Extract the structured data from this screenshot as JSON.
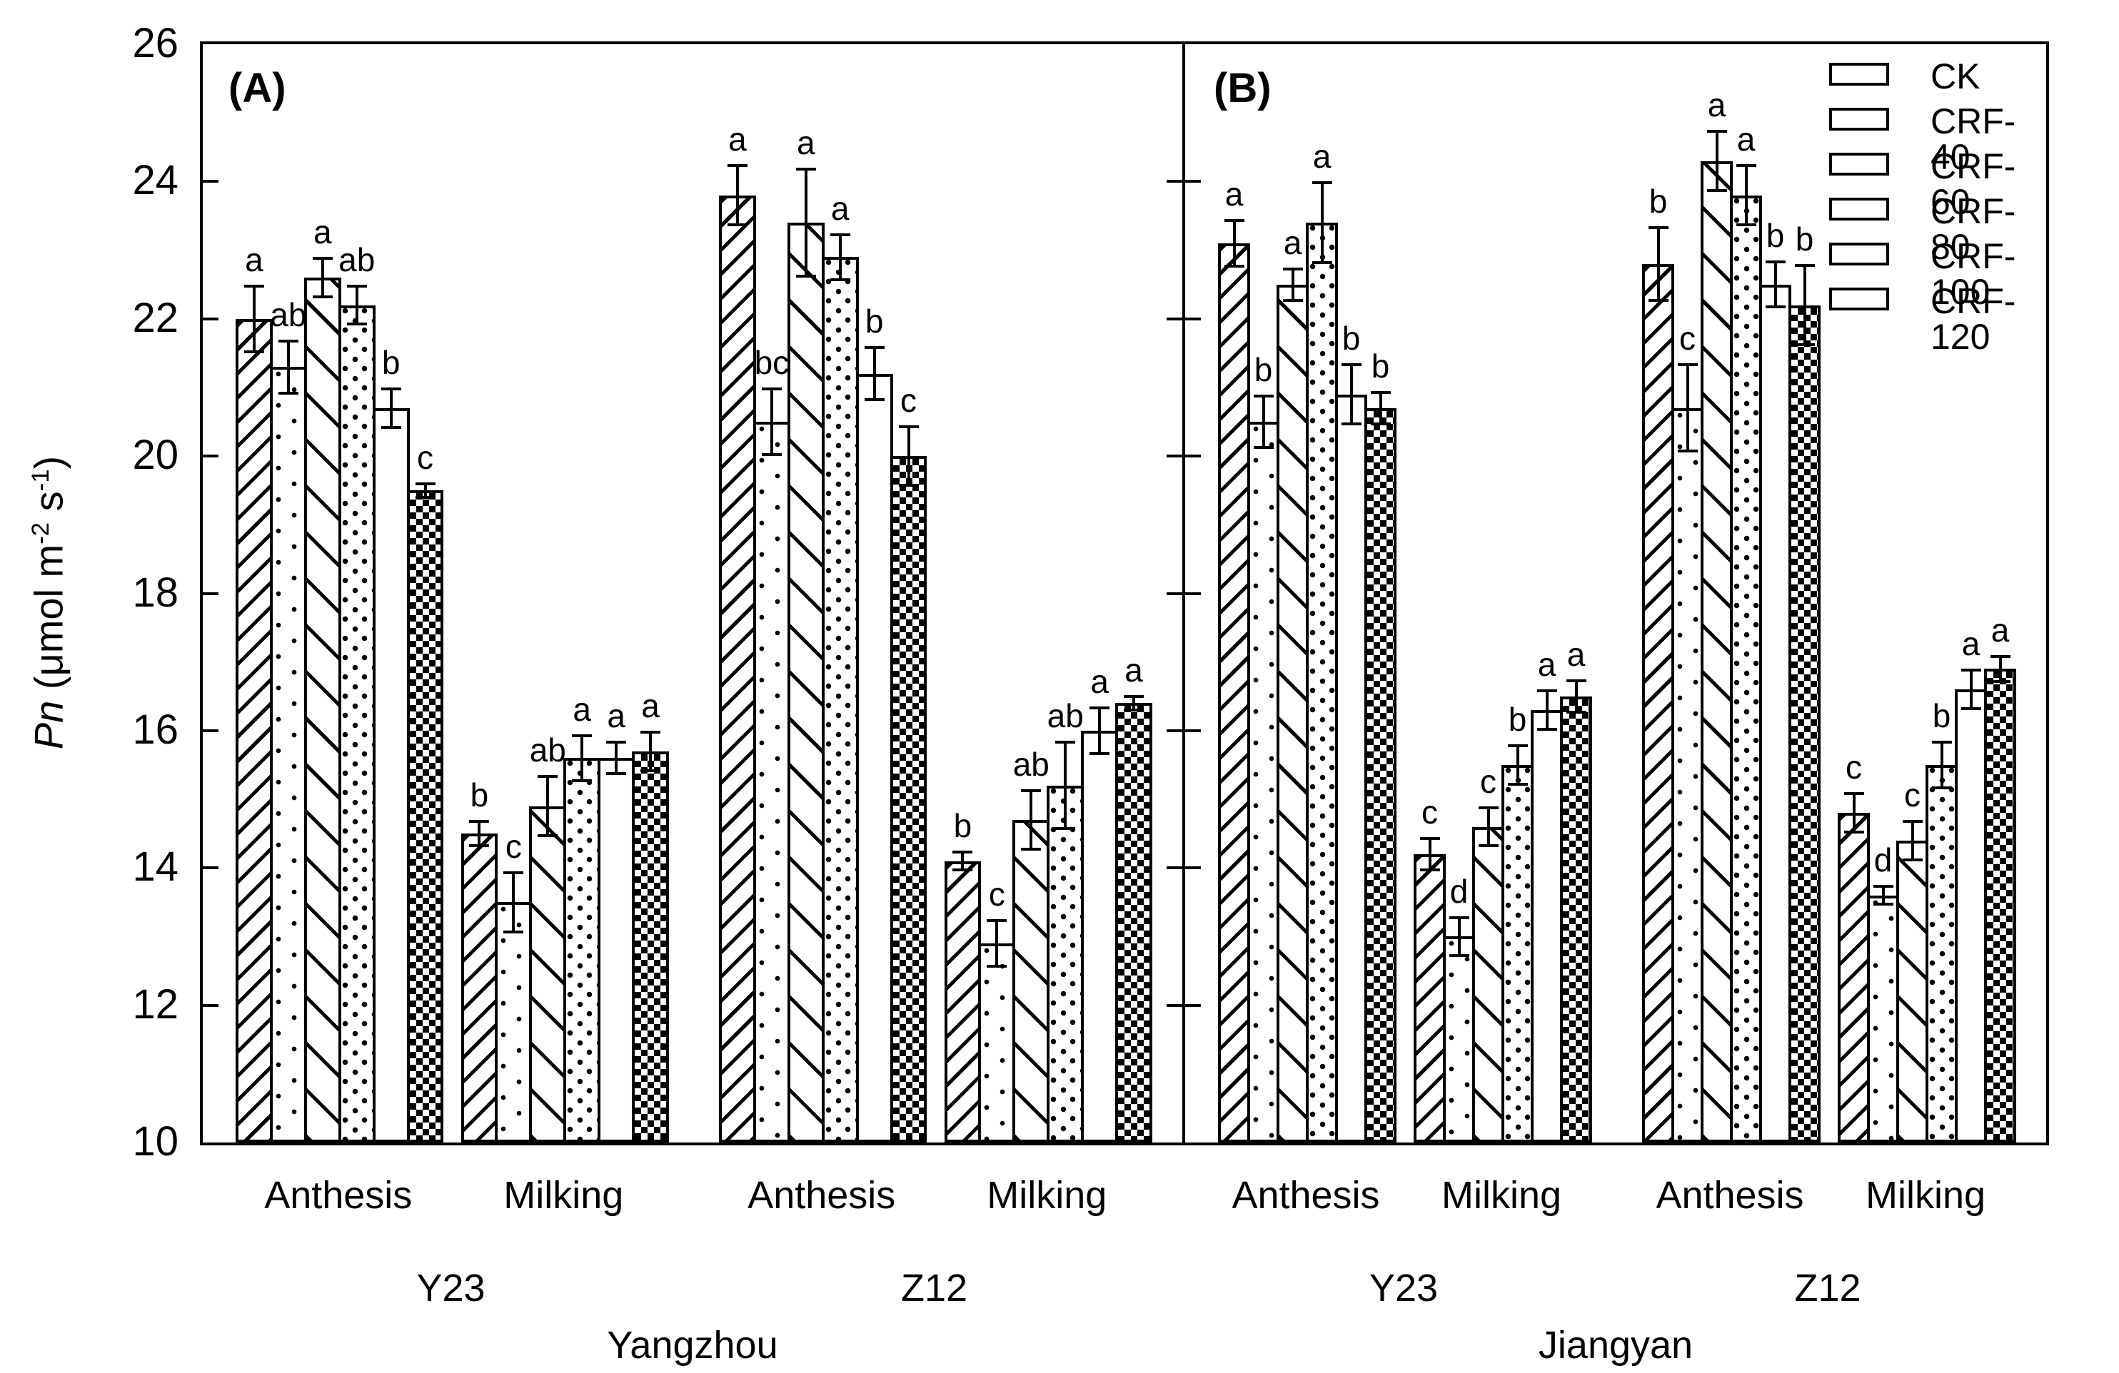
{
  "figure": {
    "panel_a_letter": "(A)",
    "panel_b_letter": "(B)"
  },
  "y_axis": {
    "var": "Pn",
    "pre": " (μmol m",
    "sup_m": "-2",
    "mid": " s",
    "sup_s": "-1",
    "post": ")",
    "ticks": [
      10,
      12,
      14,
      16,
      18,
      20,
      22,
      24,
      26
    ]
  },
  "legend": {
    "items": [
      {
        "label": "CK",
        "pattern": "ck"
      },
      {
        "label": "CRF-40",
        "pattern": "crf40"
      },
      {
        "label": "CRF-60",
        "pattern": "crf60"
      },
      {
        "label": "CRF-80",
        "pattern": "crf80"
      },
      {
        "label": "CRF-100",
        "pattern": "crf100"
      },
      {
        "label": "CRF-120",
        "pattern": "crf120"
      }
    ]
  },
  "chart_data": {
    "type": "bar",
    "title": "",
    "ylabel": "Pn (umol m-2 s-1)",
    "ylim": [
      10,
      26
    ],
    "ytick_step": 2,
    "grid": false,
    "legend_position": "top-right-inside-panel-B",
    "series_names": [
      "CK",
      "CRF-40",
      "CRF-60",
      "CRF-80",
      "CRF-100",
      "CRF-120"
    ],
    "series_patterns": [
      "ck",
      "crf40",
      "crf60",
      "crf80",
      "crf100",
      "crf120"
    ],
    "panels": [
      {
        "id": "A",
        "location": "Yangzhou",
        "groups": [
          {
            "variety": "Y23",
            "stage": "Anthesis",
            "values": [
              22.0,
              21.3,
              22.6,
              22.2,
              20.7,
              19.5
            ],
            "errors": [
              0.5,
              0.4,
              0.3,
              0.3,
              0.3,
              0.12
            ],
            "letters": [
              "a",
              "ab",
              "a",
              "ab",
              "b",
              "c"
            ]
          },
          {
            "variety": "Y23",
            "stage": "Milking",
            "values": [
              14.5,
              13.5,
              14.9,
              15.6,
              15.6,
              15.7
            ],
            "errors": [
              0.2,
              0.45,
              0.45,
              0.35,
              0.25,
              0.3
            ],
            "letters": [
              "b",
              "c",
              "ab",
              "a",
              "a",
              "a"
            ]
          },
          {
            "variety": "Z12",
            "stage": "Anthesis",
            "values": [
              23.8,
              20.5,
              23.4,
              22.9,
              21.2,
              20.0
            ],
            "errors": [
              0.45,
              0.5,
              0.8,
              0.35,
              0.4,
              0.45
            ],
            "letters": [
              "a",
              "bc",
              "a",
              "a",
              "b",
              "c"
            ]
          },
          {
            "variety": "Z12",
            "stage": "Milking",
            "values": [
              14.1,
              12.9,
              14.7,
              15.2,
              16.0,
              16.4
            ],
            "errors": [
              0.15,
              0.35,
              0.45,
              0.65,
              0.35,
              0.12
            ],
            "letters": [
              "b",
              "c",
              "ab",
              "ab",
              "a",
              "a"
            ]
          }
        ]
      },
      {
        "id": "B",
        "location": "Jiangyan",
        "groups": [
          {
            "variety": "Y23",
            "stage": "Anthesis",
            "values": [
              23.1,
              20.5,
              22.5,
              23.4,
              20.9,
              20.7
            ],
            "errors": [
              0.35,
              0.4,
              0.25,
              0.6,
              0.45,
              0.25
            ],
            "letters": [
              "a",
              "b",
              "a",
              "a",
              "b",
              "b"
            ]
          },
          {
            "variety": "Y23",
            "stage": "Milking",
            "values": [
              14.2,
              13.0,
              14.6,
              15.5,
              16.3,
              16.5
            ],
            "errors": [
              0.25,
              0.3,
              0.3,
              0.3,
              0.3,
              0.25
            ],
            "letters": [
              "c",
              "d",
              "c",
              "b",
              "a",
              "a"
            ]
          },
          {
            "variety": "Z12",
            "stage": "Anthesis",
            "values": [
              22.8,
              20.7,
              24.3,
              23.8,
              22.5,
              22.2
            ],
            "errors": [
              0.55,
              0.65,
              0.45,
              0.45,
              0.35,
              0.6
            ],
            "letters": [
              "b",
              "c",
              "a",
              "a",
              "b",
              "b"
            ]
          },
          {
            "variety": "Z12",
            "stage": "Milking",
            "values": [
              14.8,
              13.6,
              14.4,
              15.5,
              16.6,
              16.9
            ],
            "errors": [
              0.3,
              0.15,
              0.3,
              0.35,
              0.3,
              0.2
            ],
            "letters": [
              "c",
              "d",
              "c",
              "b",
              "a",
              "a"
            ]
          }
        ]
      }
    ]
  }
}
